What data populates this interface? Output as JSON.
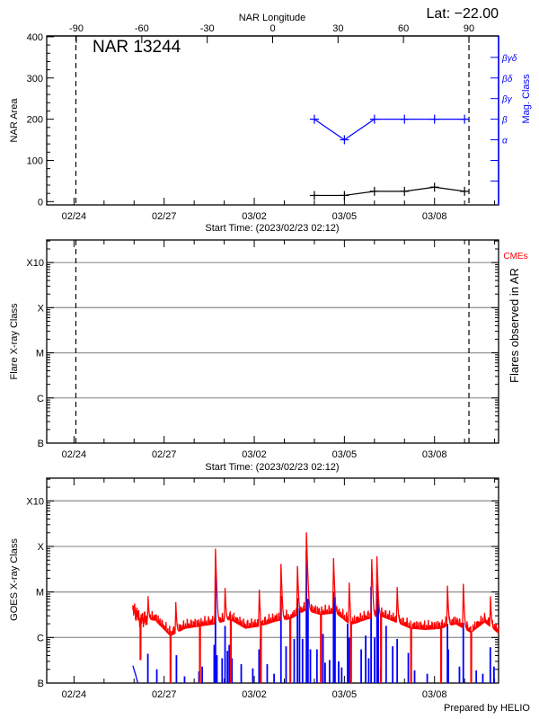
{
  "header": {
    "lat_label": "Lat: −22.00",
    "region_title": "NAR 13244",
    "footer": "Prepared by HELIO"
  },
  "chart_data": [
    {
      "type": "line",
      "top_axis": {
        "label": "NAR Longitude",
        "ticks": [
          -90,
          -60,
          -30,
          0,
          30,
          60,
          90
        ],
        "range": [
          -103.6,
          103.6
        ]
      },
      "xlabel": "Start Time: (2023/02/23 02:12)",
      "xlim": [
        "02/23 02:12",
        "03/10 03:10"
      ],
      "x_ticks": [
        {
          "t": "02/24 00:00",
          "label": "02/24"
        },
        {
          "t": "02/27 00:00",
          "label": "02/27"
        },
        {
          "t": "03/02 00:00",
          "label": "03/02"
        },
        {
          "t": "03/05 00:00",
          "label": "03/05"
        },
        {
          "t": "03/08 00:00",
          "label": "03/08"
        }
      ],
      "limb_markers": [
        "02/24 01:30",
        "03/09 03:30"
      ],
      "ylabel": "NAR Area",
      "ylim": [
        -8,
        402
      ],
      "y_ticks": [
        0,
        100,
        200,
        300,
        400
      ],
      "y2label": "Mag. Class",
      "y2_ticks": [
        {
          "value": 50,
          "label": ""
        },
        {
          "value": 100,
          "label": ""
        },
        {
          "value": 150,
          "label": "α"
        },
        {
          "value": 200,
          "label": "β"
        },
        {
          "value": 250,
          "label": "βγ"
        },
        {
          "value": 300,
          "label": "βδ"
        },
        {
          "value": 350,
          "label": "βγδ"
        }
      ],
      "grid": false,
      "series": [
        {
          "color": "#000000",
          "x": [
            "03/04 00:00",
            "03/05 00:00",
            "03/06 00:00",
            "03/07 00:00",
            "03/08 00:00",
            "03/09 00:00"
          ],
          "y": [
            15,
            15,
            25,
            25,
            35,
            25
          ]
        },
        {
          "color": "#0000ff",
          "x": [
            "03/04 00:00",
            "03/05 00:00",
            "03/06 00:00",
            "03/07 00:00",
            "03/08 00:00",
            "03/09 00:00"
          ],
          "y_class": [
            "β",
            "α",
            "β",
            "β",
            "β",
            "β"
          ]
        }
      ]
    },
    {
      "type": "scatter",
      "xlabel": "Start Time: (2023/02/23 02:12)",
      "ylabel": "Flare X-ray Class",
      "y2label": "Flares observed in AR",
      "cme_label": "CMEs",
      "cme_color": "#ff0000",
      "y_scale": "log",
      "ylim_log10": [
        -7,
        -2.5
      ],
      "y_ticks": [
        {
          "value": 1e-07,
          "label": "B"
        },
        {
          "value": 1e-06,
          "label": "C"
        },
        {
          "value": 1e-05,
          "label": "M"
        },
        {
          "value": 0.0001,
          "label": "X"
        },
        {
          "value": 0.001,
          "label": "X10"
        }
      ],
      "grid": true,
      "flares": []
    },
    {
      "type": "line",
      "ylabel": "GOES X-ray Class",
      "y_scale": "log",
      "ylim_log10": [
        -7,
        -2.5
      ],
      "y_ticks": [
        {
          "value": 1e-07,
          "label": "B"
        },
        {
          "value": 1e-06,
          "label": "C"
        },
        {
          "value": 1e-05,
          "label": "M"
        },
        {
          "value": 0.0001,
          "label": "X"
        },
        {
          "value": 0.001,
          "label": "X10"
        }
      ],
      "grid": true,
      "series": [
        {
          "color": "#ff0000",
          "baseline": [
            [
              "02/25 23:00",
              4.2e-06
            ],
            [
              "02/26 05:00",
              2.6e-06
            ],
            [
              "02/26 17:00",
              2.4e-06
            ],
            [
              "02/27 05:00",
              1.1e-06
            ],
            [
              "02/27 17:00",
              1.6e-06
            ],
            [
              "02/28 05:00",
              1.8e-06
            ],
            [
              "02/28 17:00",
              2e-06
            ],
            [
              "03/01 05:00",
              2.5e-06
            ],
            [
              "03/01 17:00",
              1.6e-06
            ],
            [
              "03/02 05:00",
              1.8e-06
            ],
            [
              "03/02 17:00",
              2.3e-06
            ],
            [
              "03/03 05:00",
              2.6e-06
            ],
            [
              "03/03 17:00",
              4e-06
            ],
            [
              "03/04 05:00",
              3.2e-06
            ],
            [
              "03/04 17:00",
              3.5e-06
            ],
            [
              "03/05 05:00",
              1.9e-06
            ],
            [
              "03/05 17:00",
              2.5e-06
            ],
            [
              "03/06 05:00",
              3e-06
            ],
            [
              "03/06 17:00",
              2.2e-06
            ],
            [
              "03/07 05:00",
              1.6e-06
            ],
            [
              "03/07 17:00",
              1.5e-06
            ],
            [
              "03/08 05:00",
              1.6e-06
            ],
            [
              "03/08 17:00",
              2e-06
            ],
            [
              "03/09 05:00",
              1.3e-06
            ],
            [
              "03/09 16:00",
              2.2e-06
            ],
            [
              "03/10 04:00",
              1.2e-06
            ]
          ],
          "peaks": [
            [
              "02/26 11:10",
              5.6e-06
            ],
            [
              "02/27 09:20",
              4.7e-06
            ],
            [
              "02/28 17:00",
              8.7e-05
            ],
            [
              "03/01 00:40",
              1e-05
            ],
            [
              "03/02 04:00",
              9.5e-06
            ],
            [
              "03/02 21:20",
              3.9e-05
            ],
            [
              "03/03 10:30",
              3.4e-05
            ],
            [
              "03/03 17:40",
              0.0002
            ],
            [
              "03/04 15:20",
              5.2e-05
            ],
            [
              "03/05 03:50",
              1.4e-05
            ],
            [
              "03/05 21:50",
              5e-05
            ],
            [
              "03/06 02:00",
              5.8e-05
            ],
            [
              "03/06 18:10",
              1.07e-05
            ],
            [
              "03/08 10:20",
              1.2e-05
            ],
            [
              "03/08 23:00",
              1.35e-05
            ],
            [
              "03/09 20:40",
              6.3e-06
            ]
          ],
          "dropouts": [
            [
              "02/26 04:50",
              5.2e-07
            ],
            [
              "02/27 04:50",
              1e-07
            ],
            [
              "02/28 04:20",
              1e-07
            ],
            [
              "03/01 05:00",
              1e-07
            ],
            [
              "03/02 05:00",
              1e-07
            ],
            [
              "03/03 04:30",
              1e-07
            ],
            [
              "03/04 05:00",
              1e-07
            ],
            [
              "03/05 05:00",
              1e-07
            ],
            [
              "03/06 05:00",
              1e-07
            ],
            [
              "03/07 05:00",
              1e-07
            ],
            [
              "03/08 05:00",
              1e-07
            ],
            [
              "03/09 05:00",
              1e-07
            ]
          ]
        },
        {
          "color": "#0000ff",
          "baseline": [
            [
              "02/25 23:00",
              2.4e-07
            ],
            [
              "02/26 01:00",
              1.6e-07
            ],
            [
              "02/26 03:00",
              1e-07
            ]
          ],
          "spikes": [
            [
              "02/26 11:00",
              4.4e-07
            ],
            [
              "02/26 18:10",
              2e-07
            ],
            [
              "02/27 09:50",
              4.1e-07
            ],
            [
              "02/27 16:20",
              1.4e-07
            ],
            [
              "02/28 03:50",
              1.8e-07
            ],
            [
              "02/28 06:25",
              2.3e-07
            ],
            [
              "02/28 16:00",
              6.9e-07
            ],
            [
              "02/28 17:00",
              2.2e-05
            ],
            [
              "02/28 18:10",
              4.1e-07
            ],
            [
              "02/28 22:20",
              3.5e-07
            ],
            [
              "03/01 00:40",
              1.8e-06
            ],
            [
              "03/01 02:35",
              5.1e-07
            ],
            [
              "03/01 04:00",
              6.9e-07
            ],
            [
              "03/01 06:10",
              3.5e-07
            ],
            [
              "03/01 13:35",
              2.6e-07
            ],
            [
              "03/01 22:50",
              2.1e-07
            ],
            [
              "03/02 03:50",
              5.5e-07
            ],
            [
              "03/02 05:00",
              9.3e-07
            ],
            [
              "03/02 10:20",
              2.6e-07
            ],
            [
              "03/02 15:50",
              1.6e-07
            ],
            [
              "03/02 21:20",
              8.2e-06
            ],
            [
              "03/03 01:25",
              6.4e-07
            ],
            [
              "03/03 07:55",
              9.3e-07
            ],
            [
              "03/03 10:30",
              7.3e-06
            ],
            [
              "03/03 12:10",
              4.5e-06
            ],
            [
              "03/03 14:35",
              9.3e-07
            ],
            [
              "03/03 17:40",
              7.9e-05
            ],
            [
              "03/03 18:55",
              7.1e-06
            ],
            [
              "03/03 20:50",
              5.5e-07
            ],
            [
              "03/04 02:05",
              5.5e-07
            ],
            [
              "03/04 06:55",
              1.2e-06
            ],
            [
              "03/04 08:35",
              2.8e-07
            ],
            [
              "03/04 12:10",
              3.2e-07
            ],
            [
              "03/04 15:20",
              1e-05
            ],
            [
              "03/04 16:30",
              7.6e-06
            ],
            [
              "03/04 19:25",
              3e-07
            ],
            [
              "03/04 21:50",
              2.2e-07
            ],
            [
              "03/05 02:35",
              2e-06
            ],
            [
              "03/05 03:50",
              1e-06
            ],
            [
              "03/05 13:25",
              5.5e-07
            ],
            [
              "03/05 17:00",
              1.1e-06
            ],
            [
              "03/05 19:25",
              3.5e-07
            ],
            [
              "03/05 21:20",
              1.3e-05
            ],
            [
              "03/06 00:10",
              1e-06
            ],
            [
              "03/06 02:05",
              1.5e-05
            ],
            [
              "03/06 03:05",
              7.1e-06
            ],
            [
              "03/06 05:00",
              2.2e-07
            ],
            [
              "03/06 09:20",
              1.8e-06
            ],
            [
              "03/06 14:35",
              6.4e-07
            ],
            [
              "03/06 18:10",
              9.3e-07
            ],
            [
              "03/07 03:05",
              4.6e-07
            ],
            [
              "03/07 08:05",
              1.9e-07
            ],
            [
              "03/07 18:10",
              1.6e-07
            ],
            [
              "03/08 10:20",
              2e-06
            ],
            [
              "03/08 11:00",
              5.5e-07
            ],
            [
              "03/08 19:55",
              2.3e-07
            ],
            [
              "03/08 23:00",
              2.1e-06
            ],
            [
              "03/09 09:20",
              1.9e-07
            ],
            [
              "03/09 14:35",
              1.6e-07
            ],
            [
              "03/09 20:35",
              6.1e-07
            ],
            [
              "03/09 23:30",
              2.3e-07
            ]
          ]
        }
      ]
    }
  ]
}
